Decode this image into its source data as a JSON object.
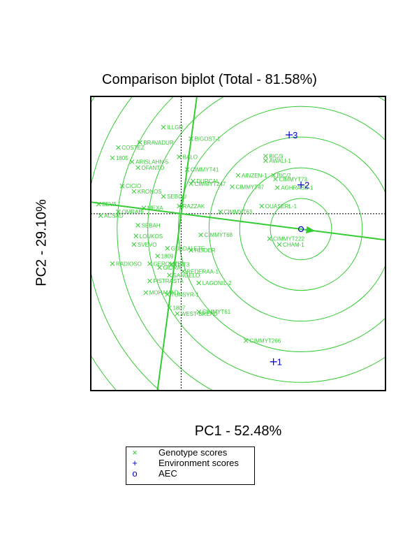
{
  "chart_data": {
    "type": "scatter",
    "title": "Comparison biplot (Total - 81.58%)",
    "xlabel": "PC1 - 52.48%",
    "ylabel": "PC2 - 29.10%",
    "xlim": [
      -2.3,
      5.2
    ],
    "ylim": [
      -4.6,
      3.05
    ],
    "colors": {
      "genotype": "#33cc33",
      "environment": "#0000cc",
      "circles": "#33cc33",
      "axis": "#33cc33"
    },
    "aec_point": [
      3.05,
      -0.4
    ],
    "genotypes": [
      {
        "name": "ILLGR",
        "x": -0.45,
        "y": 2.25
      },
      {
        "name": "BRAVADUR",
        "x": -1.05,
        "y": 1.85
      },
      {
        "name": "COSTEZ",
        "x": -1.6,
        "y": 1.72
      },
      {
        "name": "1805",
        "x": -1.75,
        "y": 1.45
      },
      {
        "name": "BIGOST-1",
        "x": 0.25,
        "y": 1.95
      },
      {
        "name": "BALO",
        "x": -0.05,
        "y": 1.48
      },
      {
        "name": "ARISLAHN-5",
        "x": -1.25,
        "y": 1.35
      },
      {
        "name": "OFANTO",
        "x": -1.1,
        "y": 1.2
      },
      {
        "name": "CIMMYT41",
        "x": 0.15,
        "y": 1.15
      },
      {
        "name": "BIC/3",
        "x": 2.15,
        "y": 1.5
      },
      {
        "name": "AWALI-1",
        "x": 2.15,
        "y": 1.38
      },
      {
        "name": "AINZEN-1",
        "x": 1.45,
        "y": 1.0
      },
      {
        "name": "BIC/2",
        "x": 2.35,
        "y": 1.0
      },
      {
        "name": "CIMMYT73",
        "x": 2.4,
        "y": 0.9
      },
      {
        "name": "CIMMYT247",
        "x": 0.25,
        "y": 0.78
      },
      {
        "name": "CIMMYT47",
        "x": 1.3,
        "y": 0.7
      },
      {
        "name": "AGHRASS-1",
        "x": 2.45,
        "y": 0.68
      },
      {
        "name": "CICIO",
        "x": -1.5,
        "y": 0.72
      },
      {
        "name": "KRONOS",
        "x": -1.2,
        "y": 0.58
      },
      {
        "name": "DURCAL",
        "x": 0.3,
        "y": 0.85
      },
      {
        "name": "SEBOU",
        "x": -0.45,
        "y": 0.45
      },
      {
        "name": "RAZZAK",
        "x": -0.05,
        "y": 0.2
      },
      {
        "name": "OUASERL-1",
        "x": 2.05,
        "y": 0.2
      },
      {
        "name": "BEVA",
        "x": -2.1,
        "y": 0.25
      },
      {
        "name": "ACSAD",
        "x": -2.05,
        "y": -0.05
      },
      {
        "name": "OMRABI",
        "x": -1.6,
        "y": 0.05
      },
      {
        "name": "MEXA",
        "x": -0.95,
        "y": 0.15
      },
      {
        "name": "CIMMYT63",
        "x": 1.0,
        "y": 0.05
      },
      {
        "name": "SEBAH",
        "x": -1.1,
        "y": -0.3
      },
      {
        "name": "LOUKOS",
        "x": -1.15,
        "y": -0.58
      },
      {
        "name": "SVEVO",
        "x": -1.2,
        "y": -0.8
      },
      {
        "name": "CIMMYT222",
        "x": 2.25,
        "y": -0.65
      },
      {
        "name": "CHAM-1",
        "x": 2.5,
        "y": -0.8
      },
      {
        "name": "CIMMYT68",
        "x": 0.5,
        "y": -0.55
      },
      {
        "name": "GUADALETE",
        "x": -0.35,
        "y": -0.9
      },
      {
        "name": "HEIDER",
        "x": 0.25,
        "y": -0.95
      },
      {
        "name": "1809",
        "x": -0.6,
        "y": -1.1
      },
      {
        "name": "RADIOSO",
        "x": -1.75,
        "y": -1.3
      },
      {
        "name": "GEROMTEL",
        "x": -0.8,
        "y": -1.3
      },
      {
        "name": "OST3",
        "x": -0.25,
        "y": -1.32
      },
      {
        "name": "GIDRA",
        "x": -0.55,
        "y": -1.4
      },
      {
        "name": "REDERAA-1",
        "x": 0.05,
        "y": -1.5
      },
      {
        "name": "SANGELO",
        "x": -0.3,
        "y": -1.6
      },
      {
        "name": "FISTRASTA",
        "x": -0.8,
        "y": -1.75
      },
      {
        "name": "LAGONIL-2",
        "x": 0.45,
        "y": -1.8
      },
      {
        "name": "MOHAMAD",
        "x": -0.9,
        "y": -2.05
      },
      {
        "name": "TUNSYR-1",
        "x": -0.35,
        "y": -2.1
      },
      {
        "name": "1807",
        "x": -0.3,
        "y": -2.45
      },
      {
        "name": "WEST-BREAD",
        "x": -0.1,
        "y": -2.6
      },
      {
        "name": "CIMMYT61",
        "x": 0.45,
        "y": -2.55
      },
      {
        "name": "CIMMYT266",
        "x": 1.65,
        "y": -3.3
      }
    ],
    "environments": [
      {
        "name": "3",
        "x": 2.75,
        "y": 2.05
      },
      {
        "name": "2",
        "x": 3.05,
        "y": 0.75
      },
      {
        "name": "1",
        "x": 2.35,
        "y": -3.85
      }
    ],
    "legend": {
      "placement": "bottom",
      "items": [
        {
          "symbol": "×",
          "label": "Genotype scores",
          "color": "#33cc33"
        },
        {
          "symbol": "+",
          "label": "Environment scores",
          "color": "#0000cc"
        },
        {
          "symbol": "o",
          "label": "AEC",
          "color": "#0000cc"
        }
      ]
    }
  }
}
